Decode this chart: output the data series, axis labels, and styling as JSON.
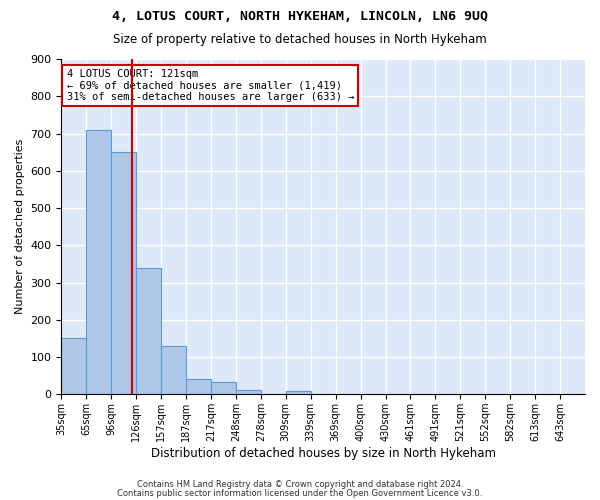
{
  "title": "4, LOTUS COURT, NORTH HYKEHAM, LINCOLN, LN6 9UQ",
  "subtitle": "Size of property relative to detached houses in North Hykeham",
  "xlabel": "Distribution of detached houses by size in North Hykeham",
  "ylabel": "Number of detached properties",
  "bar_categories": [
    "35sqm",
    "65sqm",
    "96sqm",
    "126sqm",
    "157sqm",
    "187sqm",
    "217sqm",
    "248sqm",
    "278sqm",
    "309sqm",
    "339sqm",
    "369sqm",
    "400sqm",
    "430sqm",
    "461sqm",
    "491sqm",
    "521sqm",
    "552sqm",
    "582sqm",
    "613sqm",
    "643sqm"
  ],
  "bar_values": [
    150,
    710,
    650,
    340,
    130,
    42,
    32,
    12,
    0,
    10,
    0,
    0,
    0,
    0,
    0,
    0,
    0,
    0,
    0,
    0,
    0
  ],
  "bar_color": "#aec6e8",
  "bar_edge_color": "#5b9bd5",
  "bar_linewidth": 0.8,
  "background_color": "#dde8f8",
  "grid_color": "#ffffff",
  "red_line_color": "#cc0000",
  "annotation_text": "4 LOTUS COURT: 121sqm\n← 69% of detached houses are smaller (1,419)\n31% of semi-detached houses are larger (633) →",
  "annotation_box_color": "#cc0000",
  "ylim": [
    0,
    900
  ],
  "yticks": [
    0,
    100,
    200,
    300,
    400,
    500,
    600,
    700,
    800,
    900
  ],
  "footnote1": "Contains HM Land Registry data © Crown copyright and database right 2024.",
  "footnote2": "Contains public sector information licensed under the Open Government Licence v3.0."
}
